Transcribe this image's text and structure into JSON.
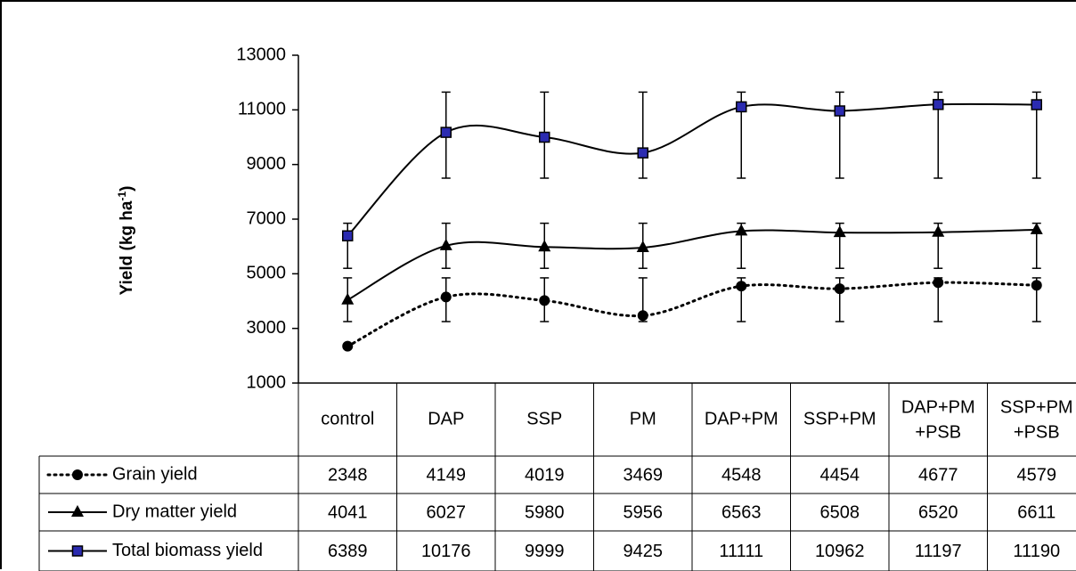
{
  "chart_data": {
    "type": "line",
    "ylabel": "Yield (kg ha",
    "ylabel_superscript": "-1",
    "ylabel_suffix": ")",
    "ylim": [
      1000,
      13000
    ],
    "yticks": [
      "13000",
      "11000",
      "9000",
      "7000",
      "5000",
      "3000",
      "1000"
    ],
    "categories": [
      [
        "control"
      ],
      [
        "DAP"
      ],
      [
        "SSP"
      ],
      [
        "PM"
      ],
      [
        "DAP+PM"
      ],
      [
        "SSP+PM"
      ],
      [
        "DAP+PM",
        "+PSB"
      ],
      [
        "SSP+PM",
        "+PSB"
      ]
    ],
    "grid": false,
    "legend": "data-table",
    "series": [
      {
        "name": "Grain yield",
        "marker": "circle",
        "line": "dotted",
        "color": "#000000",
        "marker_color": "#000000",
        "values": [
          2348,
          4149,
          4019,
          3469,
          4548,
          4454,
          4677,
          4579
        ],
        "labels": [
          "2348",
          "4149",
          "4019",
          "3469",
          "4548",
          "4454",
          "4677",
          "4579"
        ],
        "error_low": [
          null,
          3250,
          3250,
          3250,
          3250,
          3250,
          3250,
          3250
        ],
        "error_high": [
          null,
          4850,
          4850,
          4850,
          4850,
          4850,
          4850,
          4850
        ]
      },
      {
        "name": "Dry matter yield",
        "marker": "triangle",
        "line": "solid",
        "color": "#000000",
        "marker_color": "#000000",
        "values": [
          4041,
          6027,
          5980,
          5956,
          6563,
          6508,
          6520,
          6611
        ],
        "labels": [
          "4041",
          "6027",
          "5980",
          "5956",
          "6563",
          "6508",
          "6520",
          "6611"
        ],
        "error_low": [
          3250,
          5200,
          5200,
          5200,
          5200,
          5200,
          5200,
          5200
        ],
        "error_high": [
          4850,
          6850,
          6850,
          6850,
          6850,
          6850,
          6850,
          6850
        ]
      },
      {
        "name": "Total biomass yield",
        "marker": "square",
        "line": "solid",
        "color": "#000000",
        "marker_color": "#2b2bb0",
        "values": [
          6389,
          10176,
          9999,
          9425,
          11111,
          10962,
          11197,
          11190
        ],
        "labels": [
          "6389",
          "10176",
          "9999",
          "9425",
          "11111",
          "10962",
          "11197",
          "11190"
        ],
        "error_low": [
          5200,
          8500,
          8500,
          8500,
          8500,
          8500,
          8500,
          8500
        ],
        "error_high": [
          6850,
          11650,
          11650,
          11650,
          11650,
          11650,
          11650,
          11650
        ]
      }
    ]
  }
}
